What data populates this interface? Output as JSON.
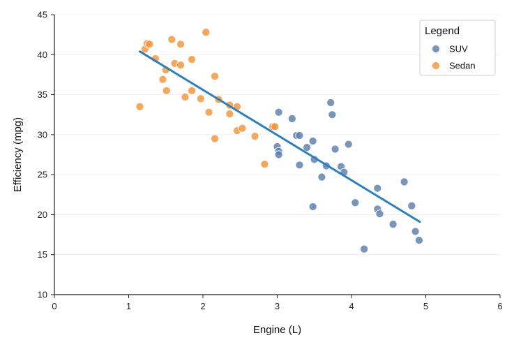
{
  "chart_data": {
    "type": "scatter",
    "xlabel": "Engine (L)",
    "ylabel": "Efficiency (mpg)",
    "xlim": [
      0,
      6
    ],
    "ylim": [
      10,
      45
    ],
    "xticks": [
      "0",
      "1",
      "2",
      "3",
      "4",
      "5",
      "6"
    ],
    "yticks": [
      "10",
      "15",
      "20",
      "25",
      "30",
      "35",
      "40",
      "45"
    ],
    "grid": "horizontal-faint",
    "legend": {
      "title": "Legend",
      "placement": "top-right"
    },
    "colors": {
      "SUV": "#5b7fab",
      "Sedan": "#f0953a",
      "trend": "#2e7fbc"
    },
    "series": [
      {
        "name": "SUV",
        "points": [
          [
            3.02,
            32.8
          ],
          [
            3.2,
            32.0
          ],
          [
            3.26,
            29.9
          ],
          [
            3.3,
            29.9
          ],
          [
            3.0,
            28.5
          ],
          [
            3.02,
            27.9
          ],
          [
            3.02,
            27.5
          ],
          [
            3.4,
            28.4
          ],
          [
            3.48,
            29.2
          ],
          [
            3.3,
            26.2
          ],
          [
            3.5,
            26.9
          ],
          [
            3.6,
            24.7
          ],
          [
            3.66,
            26.1
          ],
          [
            3.72,
            34.0
          ],
          [
            3.74,
            32.5
          ],
          [
            3.78,
            28.2
          ],
          [
            3.86,
            26.0
          ],
          [
            3.9,
            25.3
          ],
          [
            3.96,
            28.8
          ],
          [
            3.48,
            21.0
          ],
          [
            4.05,
            21.5
          ],
          [
            4.17,
            15.7
          ],
          [
            4.35,
            23.3
          ],
          [
            4.35,
            20.7
          ],
          [
            4.38,
            20.1
          ],
          [
            4.56,
            18.8
          ],
          [
            4.71,
            24.1
          ],
          [
            4.81,
            21.1
          ],
          [
            4.86,
            17.9
          ],
          [
            4.91,
            16.8
          ]
        ]
      },
      {
        "name": "Sedan",
        "points": [
          [
            1.15,
            33.5
          ],
          [
            1.22,
            40.7
          ],
          [
            1.25,
            41.4
          ],
          [
            1.28,
            41.3
          ],
          [
            1.36,
            39.5
          ],
          [
            1.46,
            36.9
          ],
          [
            1.5,
            38.1
          ],
          [
            1.51,
            35.5
          ],
          [
            1.58,
            41.9
          ],
          [
            1.62,
            38.9
          ],
          [
            1.7,
            41.3
          ],
          [
            1.7,
            38.7
          ],
          [
            1.76,
            34.7
          ],
          [
            1.85,
            39.4
          ],
          [
            1.85,
            35.5
          ],
          [
            1.97,
            34.5
          ],
          [
            2.04,
            42.8
          ],
          [
            2.08,
            32.8
          ],
          [
            2.16,
            37.3
          ],
          [
            2.16,
            29.5
          ],
          [
            2.21,
            34.4
          ],
          [
            2.36,
            33.7
          ],
          [
            2.36,
            32.6
          ],
          [
            2.46,
            33.5
          ],
          [
            2.46,
            30.5
          ],
          [
            2.53,
            30.8
          ],
          [
            2.7,
            29.8
          ],
          [
            2.83,
            26.3
          ],
          [
            2.94,
            31.0
          ],
          [
            2.97,
            31.0
          ]
        ]
      }
    ],
    "trendline": {
      "x": [
        1.15,
        4.92
      ],
      "y": [
        40.4,
        19.1
      ]
    }
  }
}
